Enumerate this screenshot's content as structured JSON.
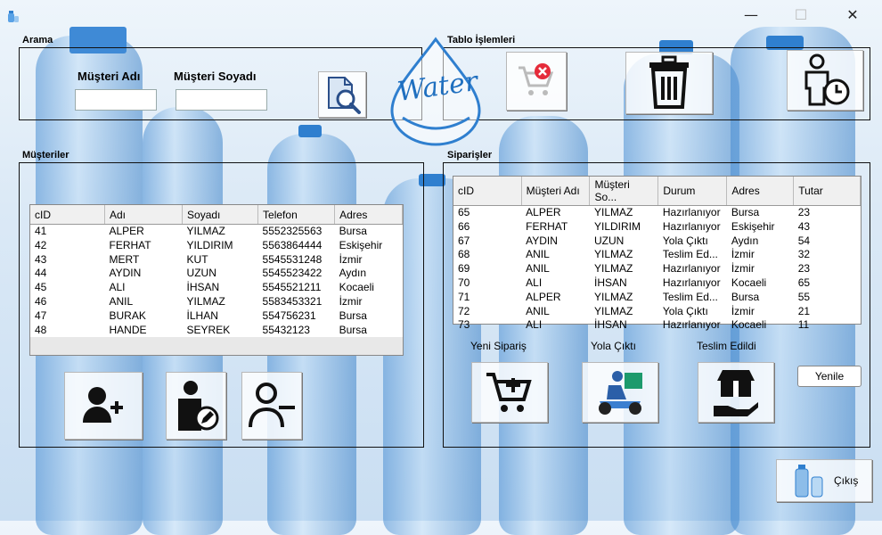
{
  "window": {
    "minimize_glyph": "—",
    "maximize_glyph": "☐",
    "close_glyph": "✕"
  },
  "search": {
    "group_title": "Arama",
    "first_name_label": "Müşteri Adı",
    "last_name_label": "Müşteri Soyadı",
    "first_name_value": "",
    "last_name_value": "",
    "search_icon": "document-search-icon"
  },
  "table_ops": {
    "group_title": "Tablo İşlemleri",
    "buttons": [
      {
        "icon": "cart-remove-icon"
      },
      {
        "icon": "trash-icon"
      },
      {
        "icon": "person-clock-icon"
      }
    ]
  },
  "logo": {
    "text": "Water"
  },
  "customers": {
    "group_title": "Müşteriler",
    "columns": [
      "cID",
      "Adı",
      "Soyadı",
      "Telefon",
      "Adres"
    ],
    "rows": [
      [
        "41",
        "ALPER",
        "YILMAZ",
        "5552325563",
        "Bursa"
      ],
      [
        "42",
        "FERHAT",
        "YILDIRIM",
        "5563864444",
        "Eskişehir"
      ],
      [
        "43",
        "MERT",
        "KUT",
        "5545531248",
        "İzmir"
      ],
      [
        "44",
        "AYDIN",
        "UZUN",
        "5545523422",
        "Aydın"
      ],
      [
        "45",
        "ALI",
        "İHSAN",
        "5545521211",
        "Kocaeli"
      ],
      [
        "46",
        "ANIL",
        "YILMAZ",
        "5583453321",
        "İzmir"
      ],
      [
        "47",
        "BURAK",
        "İLHAN",
        "554756231",
        "Bursa"
      ],
      [
        "48",
        "HANDE",
        "SEYREK",
        "55432123",
        "Bursa"
      ]
    ],
    "buttons": [
      {
        "icon": "add-user-icon"
      },
      {
        "icon": "edit-user-icon"
      },
      {
        "icon": "remove-user-icon"
      }
    ]
  },
  "orders": {
    "group_title": "Siparişler",
    "columns": [
      "cID",
      "Müşteri Adı",
      "Müşteri So...",
      "Durum",
      "Adres",
      "Tutar"
    ],
    "rows": [
      [
        "65",
        "ALPER",
        "YILMAZ",
        "Hazırlanıyor",
        "Bursa",
        "23"
      ],
      [
        "66",
        "FERHAT",
        "YILDIRIM",
        "Hazırlanıyor",
        "Eskişehir",
        "43"
      ],
      [
        "67",
        "AYDIN",
        "UZUN",
        "Yola Çıktı",
        "Aydın",
        "54"
      ],
      [
        "68",
        "ANIL",
        "YILMAZ",
        "Teslim Ed...",
        "İzmir",
        "32"
      ],
      [
        "69",
        "ANIL",
        "YILMAZ",
        "Hazırlanıyor",
        "İzmir",
        "23"
      ],
      [
        "70",
        "ALI",
        "İHSAN",
        "Hazırlanıyor",
        "Kocaeli",
        "65"
      ],
      [
        "71",
        "ALPER",
        "YILMAZ",
        "Teslim Ed...",
        "Bursa",
        "55"
      ],
      [
        "72",
        "ANIL",
        "YILMAZ",
        "Yola Çıktı",
        "İzmir",
        "21"
      ],
      [
        "73",
        "ALI",
        "İHSAN",
        "Hazırlanıyor",
        "Kocaeli",
        "11"
      ]
    ],
    "new_order_label": "Yeni Sipariş",
    "shipped_label": "Yola Çıktı",
    "delivered_label": "Teslim Edildi",
    "refresh_label": "Yenile"
  },
  "exit": {
    "label": "Çıkış",
    "icon": "water-bottles-icon"
  },
  "colors": {
    "accent": "#2f7fcf",
    "panel_border": "#111111"
  }
}
